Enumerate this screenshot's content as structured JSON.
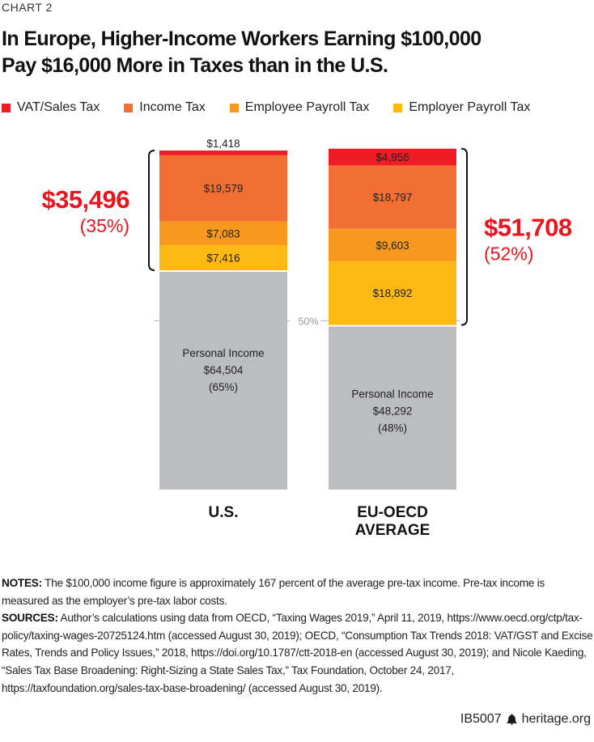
{
  "header": {
    "chart_label": "CHART 2",
    "title_line1": "In Europe, Higher-Income Workers Earning $100,000",
    "title_line2": "Pay $16,000 More in Taxes than in the U.S."
  },
  "colors": {
    "vat": "#ee1c25",
    "income_tax": "#f26f33",
    "employee_payroll": "#f7991e",
    "employer_payroll": "#fdb813",
    "personal_income": "#bcbdc0",
    "callout_red": "#e8141e",
    "reference_line": "#bbbbbb"
  },
  "chart_data": {
    "type": "bar",
    "stacked": true,
    "title": "In Europe, Higher-Income Workers Earning $100,000 Pay $16,000 More in Taxes than in the U.S.",
    "xlabel": "",
    "ylabel": "",
    "ylim": [
      0,
      100000
    ],
    "grid": false,
    "legend_position": "top",
    "categories": [
      "U.S.",
      "EU-OECD AVERAGE"
    ],
    "category_lines": [
      [
        "U.S."
      ],
      [
        "EU-OECD",
        "AVERAGE"
      ]
    ],
    "series": [
      {
        "name": "Personal Income",
        "key": "personal_income",
        "values": [
          64504,
          48292
        ],
        "labels": [
          "$64,504",
          "$48,292"
        ],
        "pct_labels": [
          "(65%)",
          "(48%)"
        ],
        "in_legend": false
      },
      {
        "name": "Employer Payroll Tax",
        "key": "employer_payroll",
        "values": [
          7416,
          18892
        ],
        "labels": [
          "$7,416",
          "$18,892"
        ],
        "in_legend": true
      },
      {
        "name": "Employee Payroll Tax",
        "key": "employee_payroll",
        "values": [
          7083,
          9603
        ],
        "labels": [
          "$7,083",
          "$9,603"
        ],
        "in_legend": true
      },
      {
        "name": "Income Tax",
        "key": "income_tax",
        "values": [
          19579,
          18797
        ],
        "labels": [
          "$19,579",
          "$18,797"
        ],
        "in_legend": true
      },
      {
        "name": "VAT/Sales Tax",
        "key": "vat",
        "values": [
          1418,
          4956
        ],
        "labels": [
          "$1,418",
          "$4,956"
        ],
        "in_legend": true
      }
    ],
    "legend": [
      "VAT/Sales Tax",
      "Income Tax",
      "Employee Payroll Tax",
      "Employer Payroll Tax"
    ],
    "personal_income_caption": "Personal Income",
    "reference_line": {
      "value": 50000,
      "label": "50%"
    },
    "totals": [
      {
        "category": "U.S.",
        "tax_total_label": "$35,496",
        "tax_pct_label": "(35%)",
        "side": "left"
      },
      {
        "category": "EU-OECD AVERAGE",
        "tax_total_label": "$51,708",
        "tax_pct_label": "(52%)",
        "side": "right"
      }
    ]
  },
  "notes": {
    "notes_label": "NOTES:",
    "notes_text": " The $100,000 income figure is approximately 167 percent of the average pre-tax income. Pre-tax income is measured as the employer’s pre-tax labor costs.",
    "sources_label": "SOURCES:",
    "sources_text": " Author’s calculations using data from OECD, “Taxing Wages 2019,” April 11, 2019, https://www.oecd.org/ctp/tax-policy/taxing-wages-20725124.htm (accessed August 30, 2019); OECD, “Consumption Tax Trends 2018: VAT/GST and Excise Rates, Trends and Policy Issues,” 2018, https://doi.org/10.1787/ctt-2018-en (accessed August 30, 2019); and Nicole Kaeding, “Sales Tax Base Broadening: Right-Sizing a State Sales Tax,” Tax Foundation, October 24, 2017, https://taxfoundation.org/sales-tax-base-broadening/ (accessed August 30, 2019)."
  },
  "footer": {
    "code": "IB5007",
    "icon": "liberty-bell-icon",
    "site": "heritage.org"
  }
}
